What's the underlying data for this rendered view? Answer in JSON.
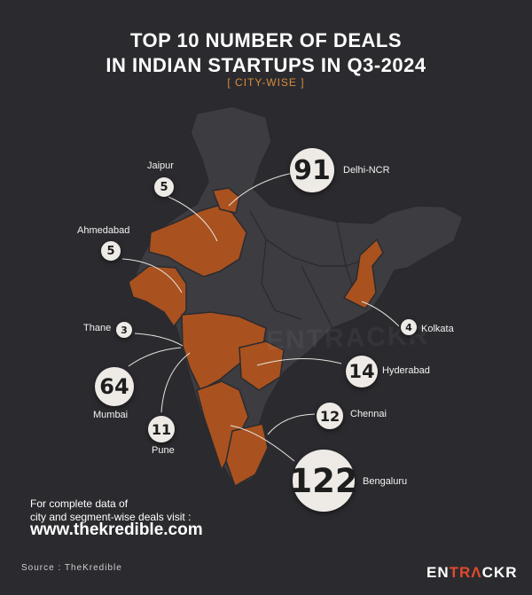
{
  "title_line1": "TOP 10 NUMBER OF DEALS",
  "title_line2": "IN INDIAN STARTUPS IN Q3-2024",
  "subtitle": "[ CITY-WISE ]",
  "cities": [
    {
      "name": "Delhi-NCR",
      "deals": "91"
    },
    {
      "name": "Jaipur",
      "deals": "5"
    },
    {
      "name": "Ahmedabad",
      "deals": "5"
    },
    {
      "name": "Thane",
      "deals": "3"
    },
    {
      "name": "Mumbai",
      "deals": "64"
    },
    {
      "name": "Pune",
      "deals": "11"
    },
    {
      "name": "Kolkata",
      "deals": "4"
    },
    {
      "name": "Hyderabad",
      "deals": "14"
    },
    {
      "name": "Chennai",
      "deals": "12"
    },
    {
      "name": "Bengaluru",
      "deals": "122"
    }
  ],
  "cta_line1": "For complete data of",
  "cta_line2": "city and segment-wise deals visit :",
  "url": "www.thekredible.com",
  "source": "Source : TheKredible",
  "logo": {
    "part1": "EN",
    "part2": "TR",
    "accent": "Λ",
    "part3": "CKR"
  },
  "watermark": "ENTRACKR",
  "colors": {
    "background": "#2b2b2f",
    "map_base": "#3c3c41",
    "highlight": "#a9521f",
    "subtitle": "#d98b3a",
    "logo_accent": "#e2492b"
  }
}
